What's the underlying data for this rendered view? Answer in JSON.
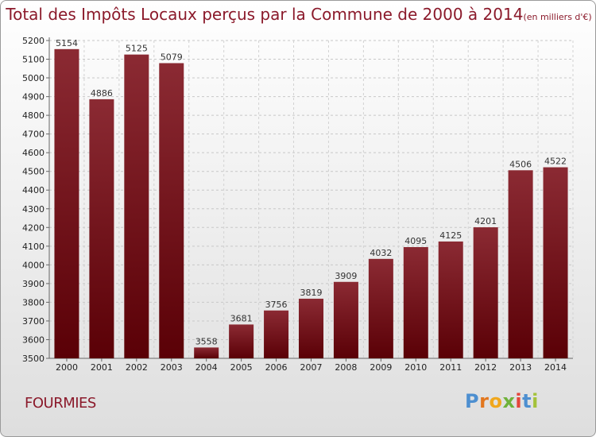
{
  "page": {
    "title": "Total des Impôts Locaux perçus par la Commune de 2000 à 2014",
    "title_unit": "(en milliers d'€)",
    "commune": "FOURMIES",
    "logo": {
      "p": "P",
      "r": "r",
      "o": "o",
      "x": "x",
      "i1": "i",
      "t": "t",
      "i2": "i"
    }
  },
  "chart_data": {
    "type": "bar",
    "title": "Total des Impôts Locaux perçus par la Commune de 2000 à 2014",
    "unit": "(en milliers d'€)",
    "categories": [
      "2000",
      "2001",
      "2002",
      "2003",
      "2004",
      "2005",
      "2006",
      "2007",
      "2008",
      "2009",
      "2010",
      "2011",
      "2012",
      "2013",
      "2014"
    ],
    "values": [
      5154,
      4886,
      5125,
      5079,
      3558,
      3681,
      3756,
      3819,
      3909,
      4032,
      4095,
      4125,
      4201,
      4506,
      4522
    ],
    "ylim": [
      3500,
      5200
    ],
    "yticks": [
      3500,
      3600,
      3700,
      3800,
      3900,
      4000,
      4100,
      4200,
      4300,
      4400,
      4500,
      4600,
      4700,
      4800,
      4900,
      5000,
      5100,
      5200
    ],
    "grid": true,
    "bar_color_top": "#8b2a33",
    "bar_color_bottom": "#5a0006"
  }
}
